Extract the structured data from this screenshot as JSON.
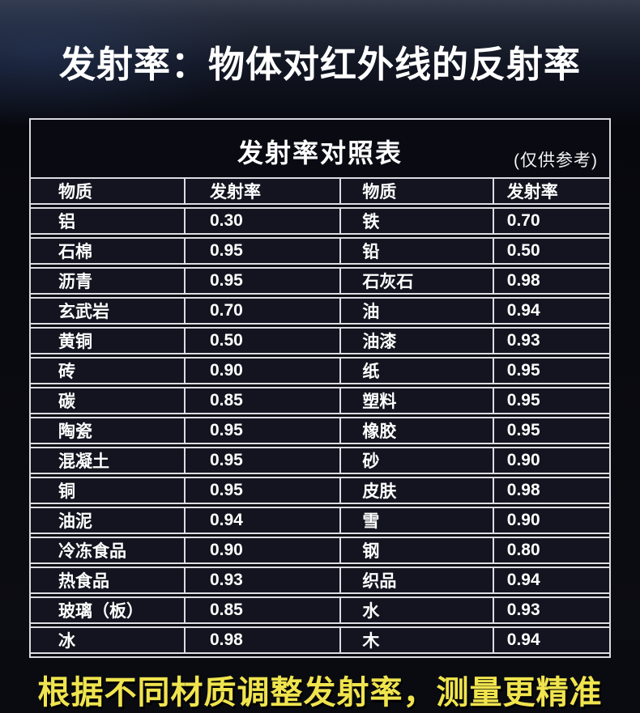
{
  "page": {
    "main_title": "发射率：物体对红外线的反射率",
    "footer_note": "根据不同材质调整发射率，测量更精准"
  },
  "colors": {
    "background": "#0a0b11",
    "cell_background": "#13141f",
    "border": "#dcdce3",
    "text": "#ffffff",
    "accent_yellow": "#f0e44e"
  },
  "chart_data": {
    "type": "table",
    "title": "发射率对照表",
    "note": "(仅供参考)",
    "columns": [
      "物质",
      "发射率",
      "物质",
      "发射率"
    ],
    "rows": [
      {
        "m1": "铝",
        "v1": "0.30",
        "m2": "铁",
        "v2": "0.70"
      },
      {
        "m1": "石棉",
        "v1": "0.95",
        "m2": "铅",
        "v2": "0.50"
      },
      {
        "m1": "沥青",
        "v1": "0.95",
        "m2": "石灰石",
        "v2": "0.98"
      },
      {
        "m1": "玄武岩",
        "v1": "0.70",
        "m2": "油",
        "v2": "0.94"
      },
      {
        "m1": "黄铜",
        "v1": "0.50",
        "m2": "油漆",
        "v2": "0.93"
      },
      {
        "m1": "砖",
        "v1": "0.90",
        "m2": "纸",
        "v2": "0.95"
      },
      {
        "m1": "碳",
        "v1": "0.85",
        "m2": "塑料",
        "v2": "0.95"
      },
      {
        "m1": "陶瓷",
        "v1": "0.95",
        "m2": "橡胶",
        "v2": "0.95"
      },
      {
        "m1": "混凝土",
        "v1": "0.95",
        "m2": "砂",
        "v2": "0.90"
      },
      {
        "m1": "铜",
        "v1": "0.95",
        "m2": "皮肤",
        "v2": "0.98"
      },
      {
        "m1": "油泥",
        "v1": "0.94",
        "m2": "雪",
        "v2": "0.90"
      },
      {
        "m1": "冷冻食品",
        "v1": "0.90",
        "m2": "钢",
        "v2": "0.80"
      },
      {
        "m1": "热食品",
        "v1": "0.93",
        "m2": "织品",
        "v2": "0.94"
      },
      {
        "m1": "玻璃（板）",
        "v1": "0.85",
        "m2": "水",
        "v2": "0.93"
      },
      {
        "m1": "冰",
        "v1": "0.98",
        "m2": "木",
        "v2": "0.94"
      }
    ]
  }
}
